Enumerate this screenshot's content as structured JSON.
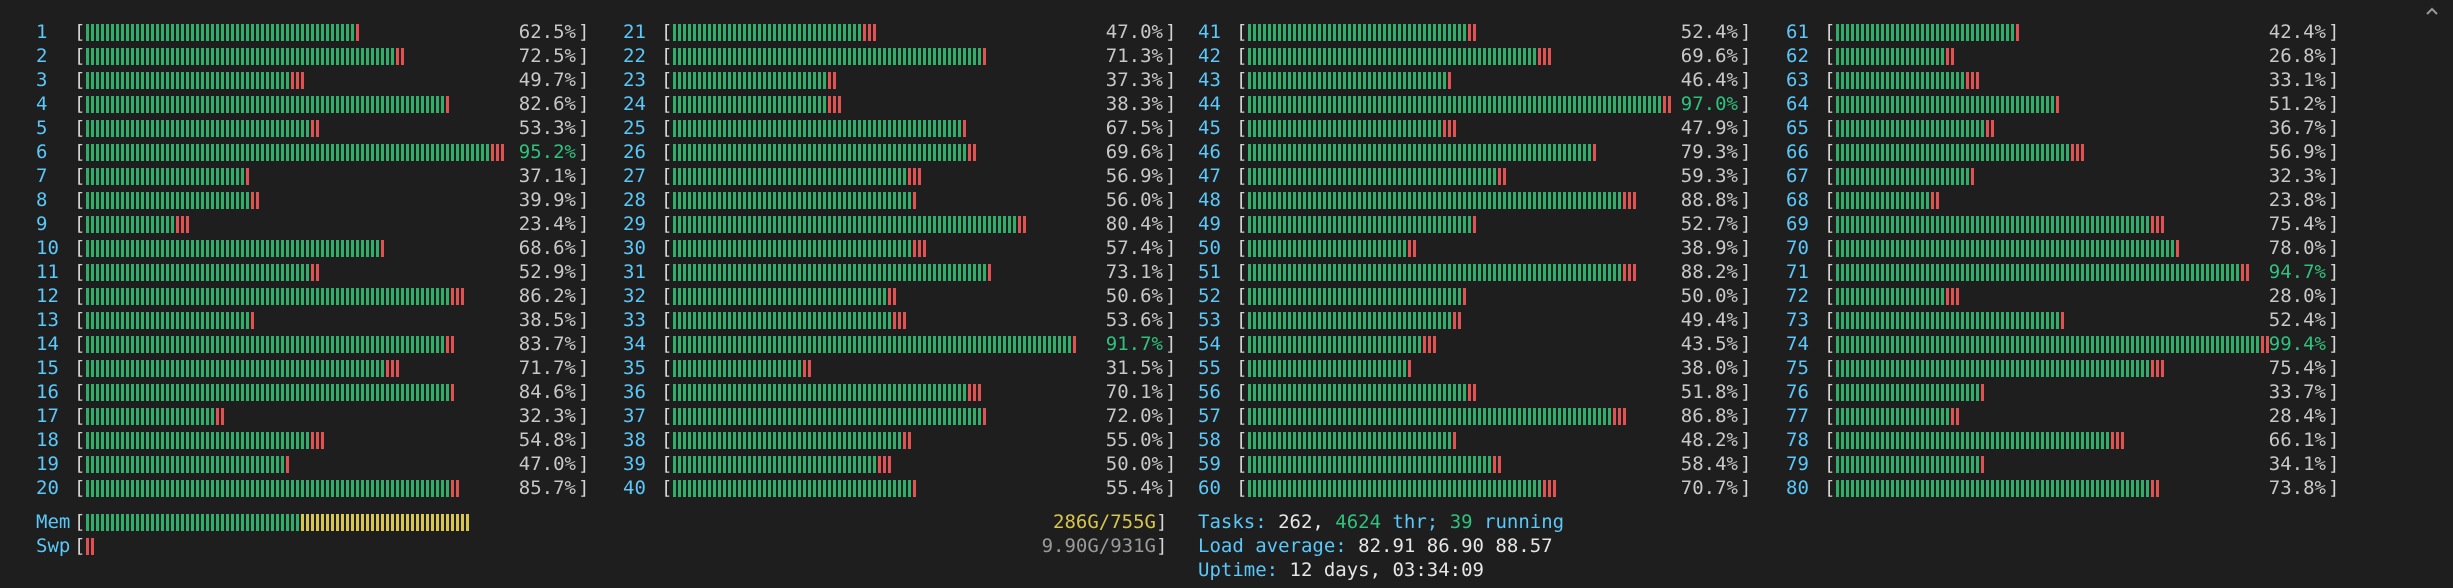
{
  "colors": {
    "background": "#1e1e1e",
    "label": "#5ac8fa",
    "bar_green": "#2fae6a",
    "bar_red": "#e05252",
    "bar_yellow": "#d8c64c",
    "pct_text": "#c8c8c8",
    "pct_high": "#2ec27e"
  },
  "cpus": [
    {
      "id": "1",
      "pct": "62.5%"
    },
    {
      "id": "2",
      "pct": "72.5%"
    },
    {
      "id": "3",
      "pct": "49.7%"
    },
    {
      "id": "4",
      "pct": "82.6%"
    },
    {
      "id": "5",
      "pct": "53.3%"
    },
    {
      "id": "6",
      "pct": "95.2%"
    },
    {
      "id": "7",
      "pct": "37.1%"
    },
    {
      "id": "8",
      "pct": "39.9%"
    },
    {
      "id": "9",
      "pct": "23.4%"
    },
    {
      "id": "10",
      "pct": "68.6%"
    },
    {
      "id": "11",
      "pct": "52.9%"
    },
    {
      "id": "12",
      "pct": "86.2%"
    },
    {
      "id": "13",
      "pct": "38.5%"
    },
    {
      "id": "14",
      "pct": "83.7%"
    },
    {
      "id": "15",
      "pct": "71.7%"
    },
    {
      "id": "16",
      "pct": "84.6%"
    },
    {
      "id": "17",
      "pct": "32.3%"
    },
    {
      "id": "18",
      "pct": "54.8%"
    },
    {
      "id": "19",
      "pct": "47.0%"
    },
    {
      "id": "20",
      "pct": "85.7%"
    },
    {
      "id": "21",
      "pct": "47.0%"
    },
    {
      "id": "22",
      "pct": "71.3%"
    },
    {
      "id": "23",
      "pct": "37.3%"
    },
    {
      "id": "24",
      "pct": "38.3%"
    },
    {
      "id": "25",
      "pct": "67.5%"
    },
    {
      "id": "26",
      "pct": "69.6%"
    },
    {
      "id": "27",
      "pct": "56.9%"
    },
    {
      "id": "28",
      "pct": "56.0%"
    },
    {
      "id": "29",
      "pct": "80.4%"
    },
    {
      "id": "30",
      "pct": "57.4%"
    },
    {
      "id": "31",
      "pct": "73.1%"
    },
    {
      "id": "32",
      "pct": "50.6%"
    },
    {
      "id": "33",
      "pct": "53.6%"
    },
    {
      "id": "34",
      "pct": "91.7%"
    },
    {
      "id": "35",
      "pct": "31.5%"
    },
    {
      "id": "36",
      "pct": "70.1%"
    },
    {
      "id": "37",
      "pct": "72.0%"
    },
    {
      "id": "38",
      "pct": "55.0%"
    },
    {
      "id": "39",
      "pct": "50.0%"
    },
    {
      "id": "40",
      "pct": "55.4%"
    },
    {
      "id": "41",
      "pct": "52.4%"
    },
    {
      "id": "42",
      "pct": "69.6%"
    },
    {
      "id": "43",
      "pct": "46.4%"
    },
    {
      "id": "44",
      "pct": "97.0%"
    },
    {
      "id": "45",
      "pct": "47.9%"
    },
    {
      "id": "46",
      "pct": "79.3%"
    },
    {
      "id": "47",
      "pct": "59.3%"
    },
    {
      "id": "48",
      "pct": "88.8%"
    },
    {
      "id": "49",
      "pct": "52.7%"
    },
    {
      "id": "50",
      "pct": "38.9%"
    },
    {
      "id": "51",
      "pct": "88.2%"
    },
    {
      "id": "52",
      "pct": "50.0%"
    },
    {
      "id": "53",
      "pct": "49.4%"
    },
    {
      "id": "54",
      "pct": "43.5%"
    },
    {
      "id": "55",
      "pct": "38.0%"
    },
    {
      "id": "56",
      "pct": "51.8%"
    },
    {
      "id": "57",
      "pct": "86.8%"
    },
    {
      "id": "58",
      "pct": "48.2%"
    },
    {
      "id": "59",
      "pct": "58.4%"
    },
    {
      "id": "60",
      "pct": "70.7%"
    },
    {
      "id": "61",
      "pct": "42.4%"
    },
    {
      "id": "62",
      "pct": "26.8%"
    },
    {
      "id": "63",
      "pct": "33.1%"
    },
    {
      "id": "64",
      "pct": "51.2%"
    },
    {
      "id": "65",
      "pct": "36.7%"
    },
    {
      "id": "66",
      "pct": "56.9%"
    },
    {
      "id": "67",
      "pct": "32.3%"
    },
    {
      "id": "68",
      "pct": "23.8%"
    },
    {
      "id": "69",
      "pct": "75.4%"
    },
    {
      "id": "70",
      "pct": "78.0%"
    },
    {
      "id": "71",
      "pct": "94.7%"
    },
    {
      "id": "72",
      "pct": "28.0%"
    },
    {
      "id": "73",
      "pct": "52.4%"
    },
    {
      "id": "74",
      "pct": "99.4%"
    },
    {
      "id": "75",
      "pct": "75.4%"
    },
    {
      "id": "76",
      "pct": "33.7%"
    },
    {
      "id": "77",
      "pct": "28.4%"
    },
    {
      "id": "78",
      "pct": "66.1%"
    },
    {
      "id": "79",
      "pct": "34.1%"
    },
    {
      "id": "80",
      "pct": "73.8%"
    }
  ],
  "mem": {
    "label": "Mem",
    "used": "286G",
    "total": "755G",
    "text": "286G/755G",
    "used_fraction": 0.379
  },
  "swp": {
    "label": "Swp",
    "text": "9.90G/931G",
    "used_fraction": 0.0106
  },
  "tasks": {
    "label": "Tasks:",
    "count": "262,",
    "threads": "4624",
    "thr_label": "thr;",
    "running": "39",
    "running_label": "running"
  },
  "load": {
    "label": "Load average:",
    "values": "82.91 86.90 88.57"
  },
  "uptime": {
    "label": "Uptime:",
    "value": "12 days, 03:34:09"
  },
  "scroll_icon": "chevron-up-icon"
}
